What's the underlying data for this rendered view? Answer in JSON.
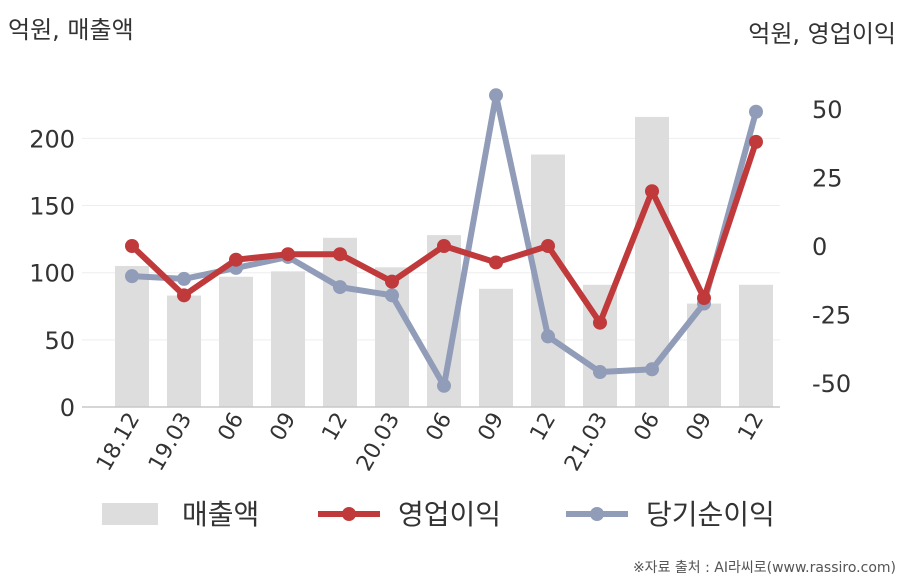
{
  "chart_data": {
    "type": "bar",
    "left_axis_label": "억원, 매출액",
    "right_axis_label": "억원, 영업이익",
    "categories": [
      "18.12",
      "19.03",
      "06",
      "09",
      "12",
      "20.03",
      "06",
      "09",
      "12",
      "21.03",
      "06",
      "09",
      "12"
    ],
    "left_axis": {
      "ticks": [
        0,
        50,
        100,
        150,
        200
      ],
      "range": [
        0,
        250
      ]
    },
    "right_axis": {
      "ticks": [
        50,
        25,
        0,
        -25,
        -50
      ],
      "range": [
        -59,
        66
      ]
    },
    "series": [
      {
        "name": "매출액",
        "type": "bar",
        "axis": "left",
        "color": "#dddddd",
        "values": [
          105,
          83,
          97,
          101,
          126,
          104,
          128,
          88,
          188,
          91,
          216,
          77,
          91
        ]
      },
      {
        "name": "영업이익",
        "type": "line",
        "axis": "right",
        "color": "#c0393b",
        "values": [
          0,
          -18,
          -5,
          -3,
          -3,
          -13,
          0,
          -6,
          0,
          -28,
          20,
          -19,
          38
        ]
      },
      {
        "name": "당기순이익",
        "type": "line",
        "axis": "right",
        "color": "#909cb8",
        "values": [
          -11,
          -12,
          -8,
          -4,
          -15,
          -18,
          -51,
          55,
          -33,
          -46,
          -45,
          -21,
          49
        ]
      }
    ],
    "legend_position": "bottom",
    "grid": true
  },
  "source_note": "※자료 출처 : AI라씨로(www.rassiro.com)"
}
